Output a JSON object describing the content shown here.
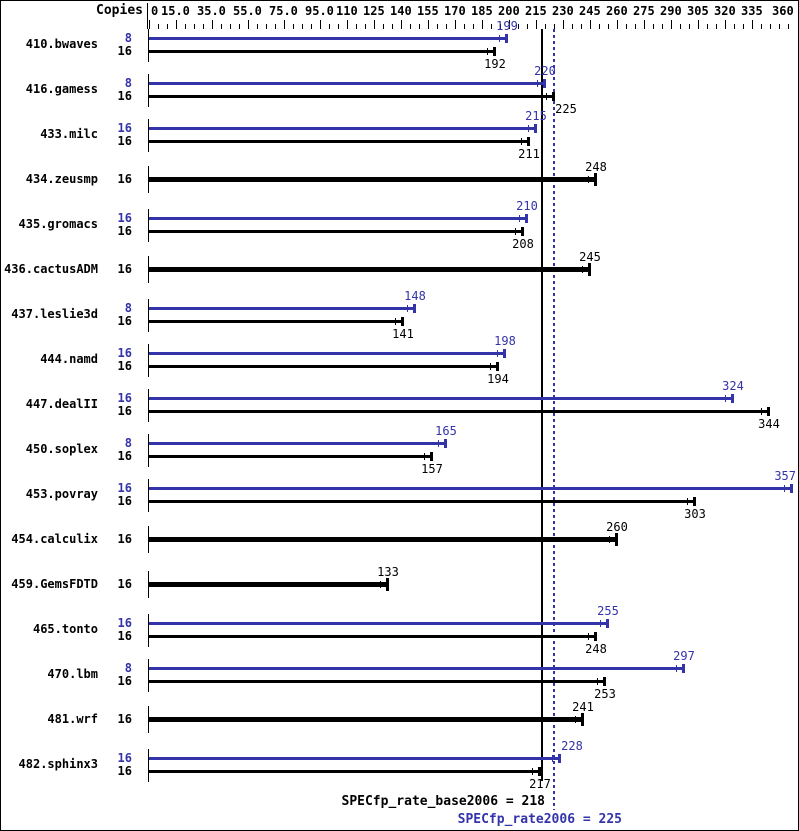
{
  "header": {
    "copies": "Copies"
  },
  "colors": {
    "peak": "#3333aa",
    "base": "#000000",
    "background": "#ffffff"
  },
  "summary": {
    "base_label": "SPECfp_rate_base2006 = 218",
    "peak_label": "SPECfp_rate2006 = 225",
    "base_value": 218,
    "peak_value": 225
  },
  "chart_data": {
    "type": "bar",
    "orientation": "horizontal",
    "suite": "SPECfp_rate2006",
    "xlim": [
      0,
      360
    ],
    "grid": false,
    "minor_tick_step": 5,
    "axis_ticks": [
      {
        "v": 0,
        "label": "0"
      },
      {
        "v": 15,
        "label": "15.0"
      },
      {
        "v": 35,
        "label": "35.0"
      },
      {
        "v": 55,
        "label": "55.0"
      },
      {
        "v": 75,
        "label": "75.0"
      },
      {
        "v": 95,
        "label": "95.0"
      },
      {
        "v": 110,
        "label": "110"
      },
      {
        "v": 125,
        "label": "125"
      },
      {
        "v": 140,
        "label": "140"
      },
      {
        "v": 155,
        "label": "155"
      },
      {
        "v": 170,
        "label": "170"
      },
      {
        "v": 185,
        "label": "185"
      },
      {
        "v": 200,
        "label": "200"
      },
      {
        "v": 215,
        "label": "215"
      },
      {
        "v": 230,
        "label": "230"
      },
      {
        "v": 245,
        "label": "245"
      },
      {
        "v": 260,
        "label": "260"
      },
      {
        "v": 275,
        "label": "275"
      },
      {
        "v": 290,
        "label": "290"
      },
      {
        "v": 305,
        "label": "305"
      },
      {
        "v": 320,
        "label": "320"
      },
      {
        "v": 335,
        "label": "335"
      },
      {
        "v": 360,
        "label": "360"
      }
    ],
    "reference_lines": [
      {
        "name": "SPECfp_rate_base2006",
        "value": 218,
        "style": "solid",
        "color": "#000000"
      },
      {
        "name": "SPECfp_rate2006",
        "value": 225,
        "style": "dotted",
        "color": "#3333aa"
      }
    ],
    "benchmarks": [
      {
        "name": "410.bwaves",
        "peak": {
          "copies": 8,
          "value": 199
        },
        "base": {
          "copies": 16,
          "value": 192
        }
      },
      {
        "name": "416.gamess",
        "peak": {
          "copies": 8,
          "value": 220
        },
        "base": {
          "copies": 16,
          "value": 225
        }
      },
      {
        "name": "433.milc",
        "peak": {
          "copies": 16,
          "value": 215
        },
        "base": {
          "copies": 16,
          "value": 211
        }
      },
      {
        "name": "434.zeusmp",
        "peak": null,
        "base": {
          "copies": 16,
          "value": 248
        }
      },
      {
        "name": "435.gromacs",
        "peak": {
          "copies": 16,
          "value": 210
        },
        "base": {
          "copies": 16,
          "value": 208
        }
      },
      {
        "name": "436.cactusADM",
        "peak": null,
        "base": {
          "copies": 16,
          "value": 245
        }
      },
      {
        "name": "437.leslie3d",
        "peak": {
          "copies": 8,
          "value": 148
        },
        "base": {
          "copies": 16,
          "value": 141
        }
      },
      {
        "name": "444.namd",
        "peak": {
          "copies": 16,
          "value": 198
        },
        "base": {
          "copies": 16,
          "value": 194
        }
      },
      {
        "name": "447.dealII",
        "peak": {
          "copies": 16,
          "value": 324
        },
        "base": {
          "copies": 16,
          "value": 344
        }
      },
      {
        "name": "450.soplex",
        "peak": {
          "copies": 8,
          "value": 165
        },
        "base": {
          "copies": 16,
          "value": 157
        }
      },
      {
        "name": "453.povray",
        "peak": {
          "copies": 16,
          "value": 357
        },
        "base": {
          "copies": 16,
          "value": 303
        }
      },
      {
        "name": "454.calculix",
        "peak": null,
        "base": {
          "copies": 16,
          "value": 260
        }
      },
      {
        "name": "459.GemsFDTD",
        "peak": null,
        "base": {
          "copies": 16,
          "value": 133
        }
      },
      {
        "name": "465.tonto",
        "peak": {
          "copies": 16,
          "value": 255
        },
        "base": {
          "copies": 16,
          "value": 248
        }
      },
      {
        "name": "470.lbm",
        "peak": {
          "copies": 8,
          "value": 297
        },
        "base": {
          "copies": 16,
          "value": 253
        }
      },
      {
        "name": "481.wrf",
        "peak": null,
        "base": {
          "copies": 16,
          "value": 241
        }
      },
      {
        "name": "482.sphinx3",
        "peak": {
          "copies": 16,
          "value": 228
        },
        "base": {
          "copies": 16,
          "value": 217
        }
      }
    ]
  }
}
